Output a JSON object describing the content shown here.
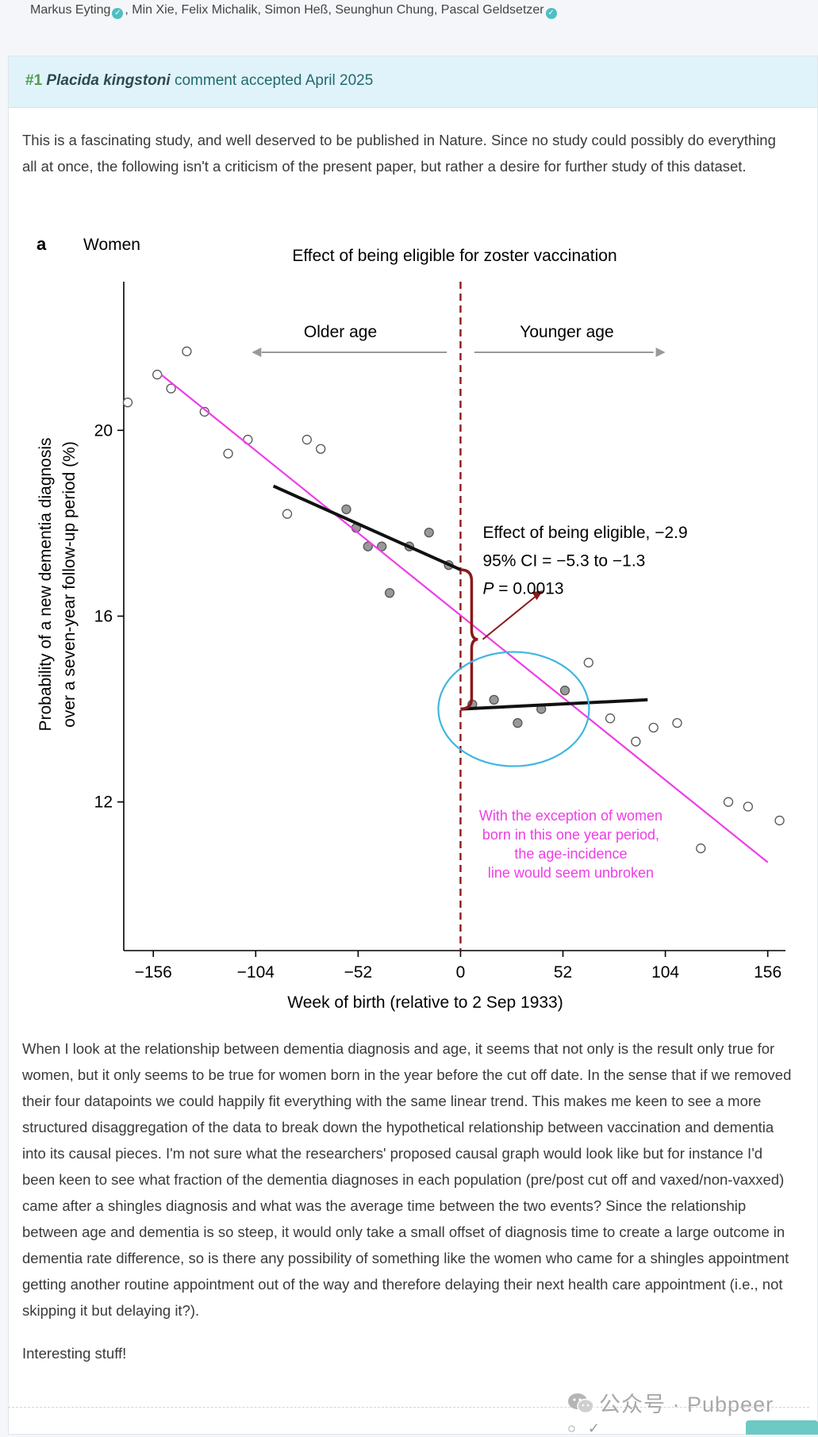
{
  "authors": {
    "list": "Markus Eyting, Min Xie, Felix Michalik, Simon Heß, Seunghun Chung, Pascal Geldsetzer",
    "first": "Markus Eyting",
    "middle": ", Min Xie, Felix Michalik, Simon Heß, Seunghun Chung, Pascal Geldsetzer"
  },
  "comment": {
    "number": "#1",
    "species": "Placida kingstoni",
    "status": "comment accepted April 2025",
    "intro": "This is a fascinating study, and well deserved to be published in Nature. Since no study could possibly do everything all at once, the following isn't a criticism of the present paper, but rather a desire for further study of this dataset.",
    "body": "When I look at the relationship between dementia diagnosis and age, it seems that not only is the result only true for women, but it only seems to be true for women born in the year before the cut off date. In the sense that if we removed their four datapoints we could happily fit everything with the same linear trend. This makes me keen to see a more structured disaggregation of the data to break down the hypothetical relationship between vaccination and dementia into its causal pieces. I'm not sure what the researchers' proposed causal graph would look like but for instance I'd been keen to see what fraction of the dementia diagnoses in each population (pre/post cut off and vaxed/non-vaxxed) came after a shingles diagnosis and what was the average time between the two events? Since the relationship between age and dementia is so steep, it would only take a small offset of diagnosis time to create a large outcome in dementia rate difference, so is there any possibility of something like the women who came for a shingles appointment getting another routine appointment out of the way and therefore delaying their next health care appointment (i.e., not skipping it but delaying it?).",
    "closing": "Interesting stuff!"
  },
  "watermark": "公众号 · Pubpeer",
  "colors": {
    "accent_green": "#4b9e4f",
    "header_bg": "#e1f3fa",
    "cutoff_line": "#8b1a1a",
    "pink_trend": "#ee3ee6",
    "blue_circle": "#3fb6e0"
  },
  "chart_data": {
    "type": "scatter",
    "panel_label": "a",
    "subgroup": "Women",
    "title": "Effect of being eligible for zoster vaccination",
    "xlabel": "Week of birth (relative to 2 Sep 1933)",
    "ylabel_line1": "Probability of a new dementia diagnosis",
    "ylabel_line2": "over a seven-year follow-up period (%)",
    "xlim": [
      -171,
      165
    ],
    "ylim": [
      8.8,
      23.2
    ],
    "xticks": [
      -156,
      -104,
      -52,
      0,
      52,
      104,
      156
    ],
    "xtick_labels": [
      "−156",
      "−104",
      "−52",
      "0",
      "52",
      "104",
      "156"
    ],
    "yticks": [
      12,
      16,
      20
    ],
    "ytick_labels": [
      "12",
      "16",
      "20"
    ],
    "cutoff_x": 0,
    "direction_left": "Older age",
    "direction_right": "Younger age",
    "series": [
      {
        "name": "",
        "kind": "points",
        "x": [
          -169,
          -154,
          -147,
          -139,
          -130,
          -118,
          -108,
          -88,
          -78,
          -71,
          -58,
          -53,
          -47,
          -40,
          -36,
          -26,
          -16,
          -6,
          6,
          17,
          29,
          41,
          53,
          65,
          76,
          89,
          98,
          110,
          122,
          136,
          146,
          162
        ],
        "y": [
          20.6,
          21.2,
          20.9,
          21.7,
          20.4,
          19.5,
          19.8,
          18.2,
          19.8,
          19.6,
          18.3,
          17.9,
          17.5,
          17.5,
          16.5,
          17.5,
          17.8,
          17.1,
          14.1,
          14.2,
          13.7,
          14.0,
          14.4,
          15.0,
          13.8,
          13.3,
          13.6,
          13.7,
          11.0,
          12.0,
          11.9,
          11.6
        ],
        "filled": [
          false,
          false,
          false,
          false,
          false,
          false,
          false,
          false,
          false,
          false,
          true,
          true,
          true,
          true,
          true,
          true,
          true,
          true,
          true,
          true,
          true,
          true,
          true,
          false,
          false,
          false,
          false,
          false,
          false,
          false,
          false,
          false
        ]
      },
      {
        "name": "",
        "kind": "line",
        "x": [
          -95,
          0
        ],
        "y": [
          18.8,
          17.0
        ]
      },
      {
        "name": "",
        "kind": "line",
        "x": [
          0,
          95
        ],
        "y": [
          14.0,
          14.2
        ]
      }
    ],
    "pink_trend_line": {
      "x": [
        -152,
        156
      ],
      "y": [
        21.2,
        10.7
      ]
    },
    "annotation": {
      "line1": "Effect of being eligible, −2.9",
      "line2": "95% CI = −5.3 to −1.3",
      "line3": "P = 0.0013",
      "p_symbol": "P",
      "p_rest": " = 0.0013"
    },
    "pink_note": [
      "With the exception of women",
      "born in this one year period,",
      "the age-incidence",
      "line would seem unbroken"
    ]
  }
}
